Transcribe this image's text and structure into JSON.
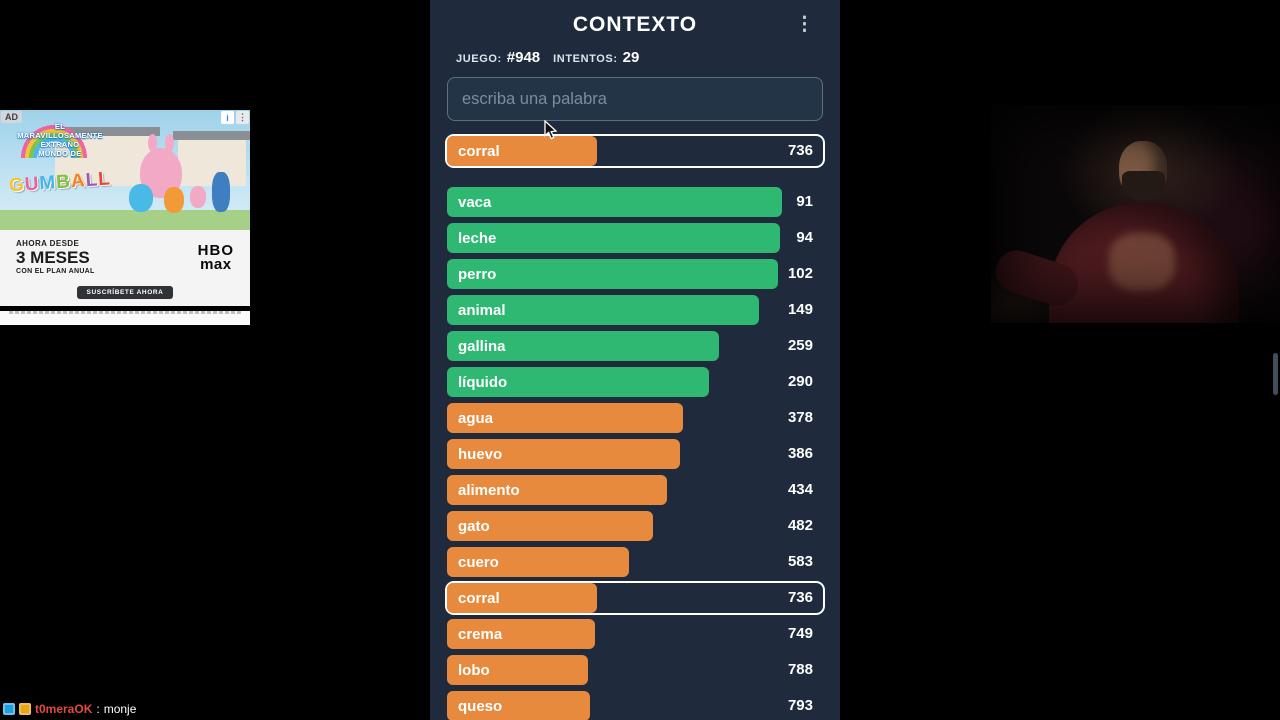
{
  "header": {
    "title": "CONTEXTO",
    "menu_icon_glyph": "⋮"
  },
  "stats": {
    "game_label": "JUEGO:",
    "game_value": "#948",
    "attempts_label": "INTENTOS:",
    "attempts_value": "29"
  },
  "input": {
    "placeholder": "escriba una palabra"
  },
  "chart_data": {
    "type": "bar",
    "colors": {
      "green": "#2eb871",
      "orange": "#e88a3d"
    },
    "pinned": {
      "word": "corral",
      "rank": 736,
      "color": "orange",
      "highlighted": true,
      "bar_pct": 40
    },
    "guesses": [
      {
        "word": "vaca",
        "rank": 91,
        "color": "green",
        "highlighted": false,
        "bar_pct": 89
      },
      {
        "word": "leche",
        "rank": 94,
        "color": "green",
        "highlighted": false,
        "bar_pct": 88.5
      },
      {
        "word": "perro",
        "rank": 102,
        "color": "green",
        "highlighted": false,
        "bar_pct": 88
      },
      {
        "word": "animal",
        "rank": 149,
        "color": "green",
        "highlighted": false,
        "bar_pct": 83
      },
      {
        "word": "gallina",
        "rank": 259,
        "color": "green",
        "highlighted": false,
        "bar_pct": 72.3
      },
      {
        "word": "líquido",
        "rank": 290,
        "color": "green",
        "highlighted": false,
        "bar_pct": 69.7
      },
      {
        "word": "agua",
        "rank": 378,
        "color": "orange",
        "highlighted": false,
        "bar_pct": 62.8
      },
      {
        "word": "huevo",
        "rank": 386,
        "color": "orange",
        "highlighted": false,
        "bar_pct": 62
      },
      {
        "word": "alimento",
        "rank": 434,
        "color": "orange",
        "highlighted": false,
        "bar_pct": 58.5
      },
      {
        "word": "gato",
        "rank": 482,
        "color": "orange",
        "highlighted": false,
        "bar_pct": 54.8
      },
      {
        "word": "cuero",
        "rank": 583,
        "color": "orange",
        "highlighted": false,
        "bar_pct": 48.4
      },
      {
        "word": "corral",
        "rank": 736,
        "color": "orange",
        "highlighted": true,
        "bar_pct": 40
      },
      {
        "word": "crema",
        "rank": 749,
        "color": "orange",
        "highlighted": false,
        "bar_pct": 39.4
      },
      {
        "word": "lobo",
        "rank": 788,
        "color": "orange",
        "highlighted": false,
        "bar_pct": 37.6
      },
      {
        "word": "queso",
        "rank": 793,
        "color": "orange",
        "highlighted": false,
        "bar_pct": 38
      }
    ]
  },
  "ad": {
    "badge": "AD",
    "info_icon_glyph": "i",
    "options_icon_glyph": "⋮",
    "tagline_lines": [
      "EL",
      "MARAVILLOSAMENTE",
      "EXTRAÑO",
      "MUNDO DE"
    ],
    "show_title": "GUMBALL",
    "title_letter_colors": [
      "#f6c431",
      "#ef5f9e",
      "#45b6e8",
      "#7dc243",
      "#f58220",
      "#9a59b5",
      "#e9453a"
    ],
    "offer_top": "AHORA DESDE",
    "offer_big": "3 MESES",
    "offer_bottom": "CON EL PLAN ANUAL",
    "brand_top": "HBO",
    "brand_bottom": "max",
    "cta": "SUSCRÍBETE AHORA"
  },
  "chat": {
    "username": "t0meraOK",
    "separator": ":",
    "message": "monje"
  }
}
